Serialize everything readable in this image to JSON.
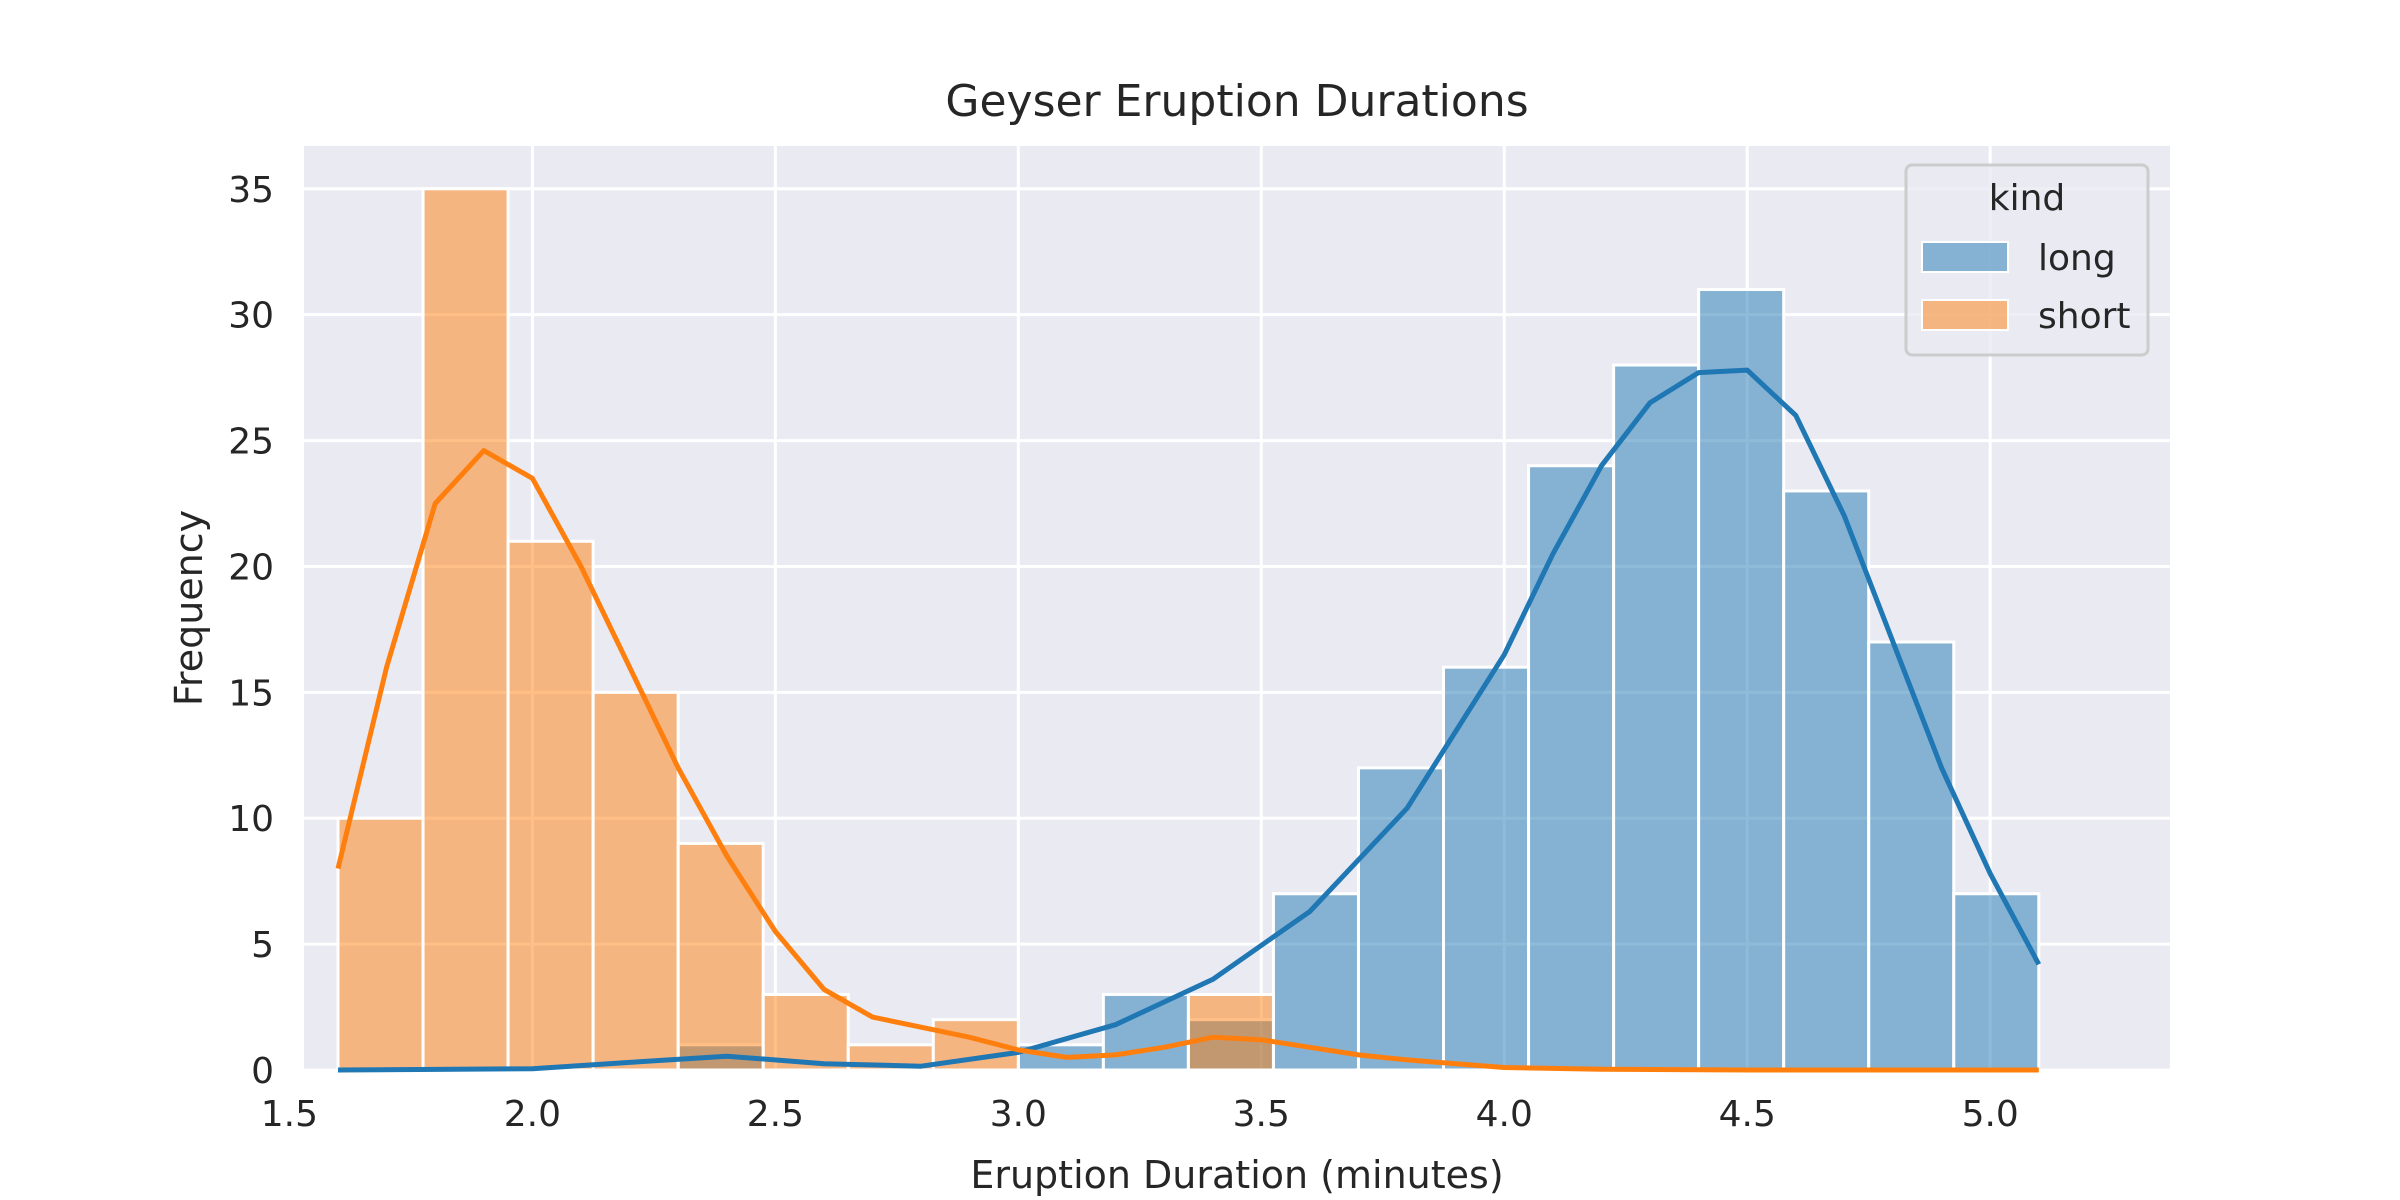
{
  "chart_data": {
    "type": "histogram",
    "title": "Geyser Eruption Durations",
    "xlabel": "Eruption Duration (minutes)",
    "ylabel": "Frequency",
    "xlim": [
      1.53,
      5.37
    ],
    "ylim": [
      0,
      36.7
    ],
    "xticks": [
      "1.5",
      "2.0",
      "2.5",
      "3.0",
      "3.5",
      "4.0",
      "4.5",
      "5.0"
    ],
    "xtick_values": [
      1.5,
      2.0,
      2.5,
      3.0,
      3.5,
      4.0,
      4.5,
      5.0
    ],
    "yticks": [
      "0",
      "5",
      "10",
      "15",
      "20",
      "25",
      "30",
      "35"
    ],
    "ytick_values": [
      0,
      5,
      10,
      15,
      20,
      25,
      30,
      35
    ],
    "grid": true,
    "bins": [
      1.6,
      1.775,
      1.95,
      2.125,
      2.3,
      2.475,
      2.65,
      2.825,
      3.0,
      3.175,
      3.35,
      3.525,
      3.7,
      3.875,
      4.05,
      4.225,
      4.4,
      4.575,
      4.75,
      4.925,
      5.1
    ],
    "legend": {
      "title": "kind",
      "position": "top-right"
    },
    "series": [
      {
        "name": "long",
        "color": "#1f77b4",
        "counts": [
          0,
          0,
          0,
          0,
          1,
          0,
          0,
          0,
          1,
          3,
          2,
          7,
          12,
          16,
          24,
          28,
          31,
          23,
          17,
          7
        ],
        "kde": [
          [
            1.6,
            0
          ],
          [
            2.0,
            0.05
          ],
          [
            2.2,
            0.3
          ],
          [
            2.4,
            0.55
          ],
          [
            2.6,
            0.25
          ],
          [
            2.8,
            0.15
          ],
          [
            3.0,
            0.7
          ],
          [
            3.2,
            1.8
          ],
          [
            3.4,
            3.6
          ],
          [
            3.6,
            6.3
          ],
          [
            3.8,
            10.4
          ],
          [
            4.0,
            16.5
          ],
          [
            4.1,
            20.5
          ],
          [
            4.2,
            24
          ],
          [
            4.3,
            26.5
          ],
          [
            4.4,
            27.7
          ],
          [
            4.5,
            27.8
          ],
          [
            4.6,
            26
          ],
          [
            4.7,
            22
          ],
          [
            4.8,
            17
          ],
          [
            4.9,
            12
          ],
          [
            5.0,
            7.8
          ],
          [
            5.1,
            4.2
          ]
        ]
      },
      {
        "name": "short",
        "color": "#ff7f0e",
        "counts": [
          10,
          35,
          21,
          15,
          9,
          3,
          1,
          2,
          0,
          0,
          3,
          0,
          0,
          0,
          0,
          0,
          0,
          0,
          0,
          0
        ],
        "kde": [
          [
            1.6,
            8
          ],
          [
            1.7,
            16
          ],
          [
            1.8,
            22.5
          ],
          [
            1.9,
            24.6
          ],
          [
            2.0,
            23.5
          ],
          [
            2.1,
            20
          ],
          [
            2.2,
            16
          ],
          [
            2.3,
            12
          ],
          [
            2.4,
            8.5
          ],
          [
            2.5,
            5.5
          ],
          [
            2.6,
            3.2
          ],
          [
            2.7,
            2.1
          ],
          [
            2.8,
            1.7
          ],
          [
            2.9,
            1.3
          ],
          [
            3.0,
            0.8
          ],
          [
            3.1,
            0.5
          ],
          [
            3.2,
            0.6
          ],
          [
            3.3,
            0.9
          ],
          [
            3.4,
            1.3
          ],
          [
            3.5,
            1.2
          ],
          [
            3.6,
            0.9
          ],
          [
            3.7,
            0.6
          ],
          [
            3.8,
            0.4
          ],
          [
            3.9,
            0.25
          ],
          [
            4.0,
            0.1
          ],
          [
            4.2,
            0.03
          ],
          [
            4.5,
            0
          ],
          [
            5.1,
            0
          ]
        ]
      }
    ]
  }
}
